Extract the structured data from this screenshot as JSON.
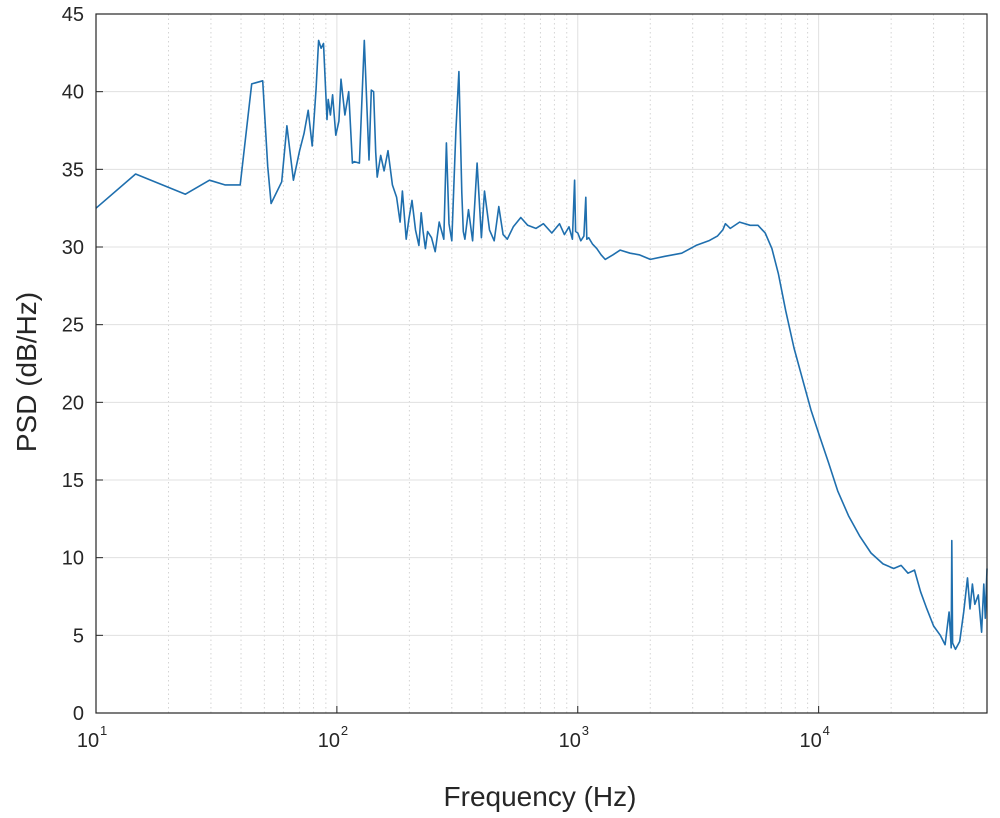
{
  "chart_data": {
    "type": "line",
    "title": "",
    "xlabel": "Frequency (Hz)",
    "ylabel": "PSD (dB/Hz)",
    "xscale": "log",
    "yscale": "linear",
    "xlim": [
      10,
      50000
    ],
    "ylim": [
      0,
      45
    ],
    "grid": "major-and-minor",
    "colors": {
      "line": "#1f6fae",
      "axes": "#262626",
      "grid_major": "#e0e0e0",
      "grid_minor": "#d4d4d4"
    },
    "y_ticks": [
      0,
      5,
      10,
      15,
      20,
      25,
      30,
      35,
      40,
      45
    ],
    "y_tick_labels": [
      "0",
      "5",
      "10",
      "15",
      "20",
      "25",
      "30",
      "35",
      "40",
      "45"
    ],
    "x_ticks": [
      10,
      100,
      1000,
      10000
    ],
    "x_tick_labels": [
      {
        "base": "10",
        "exp": "1"
      },
      {
        "base": "10",
        "exp": "2"
      },
      {
        "base": "10",
        "exp": "3"
      },
      {
        "base": "10",
        "exp": "4"
      }
    ],
    "series": [
      {
        "x": [
          10,
          14.6,
          23.5,
          29.6,
          34.3,
          39.7,
          44.3,
          49.2,
          51.6,
          53.3,
          59,
          62,
          66,
          70,
          73,
          76,
          79,
          82,
          84,
          86,
          88,
          91,
          92,
          94,
          96,
          99,
          102,
          104,
          108,
          112,
          116,
          118,
          124,
          130,
          136,
          139,
          142,
          145,
          147,
          152,
          157,
          163,
          170,
          177,
          183,
          187,
          194,
          199,
          205,
          212,
          219,
          224,
          228,
          233,
          238,
          247,
          256,
          266,
          278,
          285,
          292,
          300,
          312,
          321,
          330,
          335,
          340,
          352,
          366,
          382,
          398,
          410,
          430,
          450,
          470,
          490,
          510,
          540,
          580,
          620,
          670,
          720,
          780,
          840,
          880,
          920,
          950,
          970,
          980,
          1000,
          1030,
          1060,
          1080,
          1090,
          1110,
          1150,
          1200,
          1250,
          1300,
          1400,
          1500,
          1650,
          1800,
          2000,
          2300,
          2700,
          3100,
          3500,
          3800,
          4000,
          4100,
          4300,
          4700,
          5200,
          5600,
          6000,
          6400,
          6800,
          7300,
          7900,
          8600,
          9300,
          10100,
          11000,
          12000,
          13300,
          14800,
          16500,
          18500,
          20500,
          22000,
          23500,
          25000,
          26500,
          28000,
          30000,
          32000,
          33500,
          34800,
          35500,
          35700,
          36000,
          37000,
          38500,
          40000,
          41500,
          42500,
          43500,
          44500,
          46000,
          47500,
          48500,
          49200,
          50000
        ],
        "y": [
          32.5,
          34.7,
          33.4,
          34.3,
          34,
          34,
          40.5,
          40.7,
          35.2,
          32.8,
          34.2,
          37.8,
          34.3,
          36.2,
          37.3,
          38.8,
          36.5,
          40.2,
          43.3,
          42.8,
          43.1,
          38.2,
          39.5,
          38.5,
          39.8,
          37.2,
          38.1,
          40.8,
          38.5,
          40,
          35.4,
          35.5,
          35.4,
          43.3,
          35.6,
          40.1,
          40,
          36.1,
          34.5,
          35.9,
          34.9,
          36.2,
          34,
          33.2,
          31.6,
          33.6,
          30.5,
          31.8,
          33,
          31.1,
          30.1,
          32.2,
          31,
          29.9,
          31,
          30.6,
          29.7,
          31.6,
          30.5,
          36.7,
          31.5,
          30.4,
          37.5,
          41.3,
          33.5,
          31,
          30.5,
          32.4,
          30.4,
          35.4,
          30.6,
          33.6,
          31.1,
          30.4,
          32.6,
          30.8,
          30.5,
          31.3,
          31.9,
          31.4,
          31.2,
          31.5,
          30.9,
          31.5,
          30.8,
          31.3,
          30.5,
          34.3,
          31,
          30.9,
          30.4,
          30.7,
          33.2,
          30.5,
          30.6,
          30.2,
          29.9,
          29.5,
          29.2,
          29.5,
          29.8,
          29.6,
          29.5,
          29.2,
          29.4,
          29.6,
          30.1,
          30.4,
          30.7,
          31.1,
          31.5,
          31.2,
          31.6,
          31.4,
          31.4,
          30.9,
          29.9,
          28.3,
          25.9,
          23.5,
          21.4,
          19.5,
          17.8,
          16.1,
          14.3,
          12.7,
          11.4,
          10.3,
          9.6,
          9.3,
          9.5,
          9,
          9.2,
          7.8,
          6.8,
          5.6,
          5,
          4.4,
          6.5,
          4.2,
          11.1,
          4.5,
          4.1,
          4.6,
          6.5,
          8.7,
          6.7,
          8.3,
          7,
          7.6,
          5.2,
          8.3,
          6.1,
          9.3
        ]
      }
    ]
  }
}
